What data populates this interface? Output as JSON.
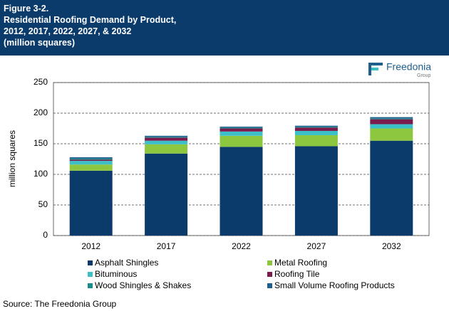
{
  "chart_data": {
    "type": "stacked_bar",
    "figure_label": "Figure 3-2.",
    "title": "Residential Roofing Demand by Product, 2012, 2017, 2022, 2027, & 2032",
    "subtitle": "(million squares)",
    "y_label": "million squares",
    "categories": [
      "2012",
      "2017",
      "2022",
      "2027",
      "2032"
    ],
    "series": [
      {
        "name": "Asphalt Shingles",
        "color": "#0b3b6b",
        "values": [
          106,
          134,
          145,
          146,
          155
        ]
      },
      {
        "name": "Metal Roofing",
        "color": "#8dc63f",
        "values": [
          10,
          15,
          18,
          18,
          20
        ]
      },
      {
        "name": "Bituminous",
        "color": "#3dbfc8",
        "values": [
          6,
          6,
          7,
          7,
          7
        ]
      },
      {
        "name": "Roofing Tile",
        "color": "#7b1a4c",
        "values": [
          2,
          5,
          5,
          5.5,
          8
        ]
      },
      {
        "name": "Wood Shingles & Shakes",
        "color": "#1b8a8c",
        "values": [
          2,
          1.5,
          1.5,
          1.5,
          1.5
        ]
      },
      {
        "name": "Small Volume Roofing Products",
        "color": "#1f5f8e",
        "values": [
          2,
          1.5,
          1.5,
          1.5,
          2
        ]
      }
    ],
    "ylim": [
      0,
      250
    ],
    "yticks": [
      0,
      50,
      100,
      150,
      200,
      250
    ],
    "grid": true,
    "logo": {
      "name": "Freedonia",
      "sub": "Group"
    },
    "source": "Source: The Freedonia Group"
  }
}
